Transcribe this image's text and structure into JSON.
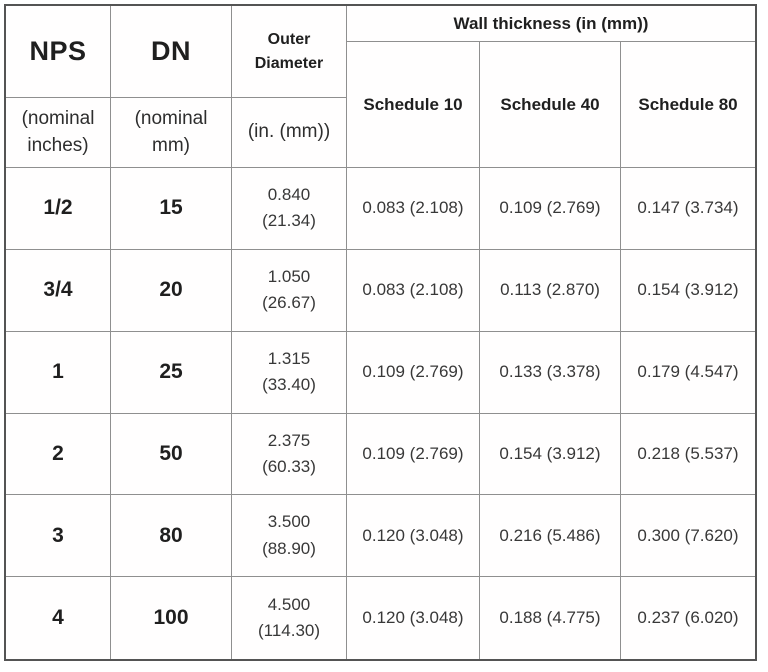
{
  "table": {
    "columns": {
      "nps": {
        "title": "NPS",
        "subtitle": "(nominal inches)"
      },
      "dn": {
        "title": "DN",
        "subtitle": "(nominal mm)"
      },
      "od": {
        "title": "Outer Diameter",
        "subtitle": "(in. (mm))"
      }
    },
    "wall_thickness_group": {
      "title": "Wall thickness (in (mm))",
      "schedules": [
        "Schedule 10",
        "Schedule 40",
        "Schedule 80"
      ]
    },
    "rows": [
      {
        "nps": "1/2",
        "dn": "15",
        "od_in": "0.840",
        "od_mm": "(21.34)",
        "sch10": "0.083 (2.108)",
        "sch40": "0.109 (2.769)",
        "sch80": "0.147 (3.734)"
      },
      {
        "nps": "3/4",
        "dn": "20",
        "od_in": "1.050",
        "od_mm": "(26.67)",
        "sch10": "0.083 (2.108)",
        "sch40": "0.113 (2.870)",
        "sch80": "0.154 (3.912)"
      },
      {
        "nps": "1",
        "dn": "25",
        "od_in": "1.315",
        "od_mm": "(33.40)",
        "sch10": "0.109 (2.769)",
        "sch40": "0.133 (3.378)",
        "sch80": "0.179 (4.547)"
      },
      {
        "nps": "2",
        "dn": "50",
        "od_in": "2.375",
        "od_mm": "(60.33)",
        "sch10": "0.109 (2.769)",
        "sch40": "0.154 (3.912)",
        "sch80": "0.218 (5.537)"
      },
      {
        "nps": "3",
        "dn": "80",
        "od_in": "3.500",
        "od_mm": "(88.90)",
        "sch10": "0.120 (3.048)",
        "sch40": "0.216 (5.486)",
        "sch80": "0.300 (7.620)"
      },
      {
        "nps": "4",
        "dn": "100",
        "od_in": "4.500",
        "od_mm": "(114.30)",
        "sch10": "0.120 (3.048)",
        "sch40": "0.188 (4.775)",
        "sch80": "0.237 (6.020)"
      }
    ],
    "colors": {
      "border_inner": "#8f8f8f",
      "border_outer": "#545454",
      "text_heading": "#1f1f1f",
      "text_data": "#383838",
      "background": "#ffffff"
    }
  }
}
